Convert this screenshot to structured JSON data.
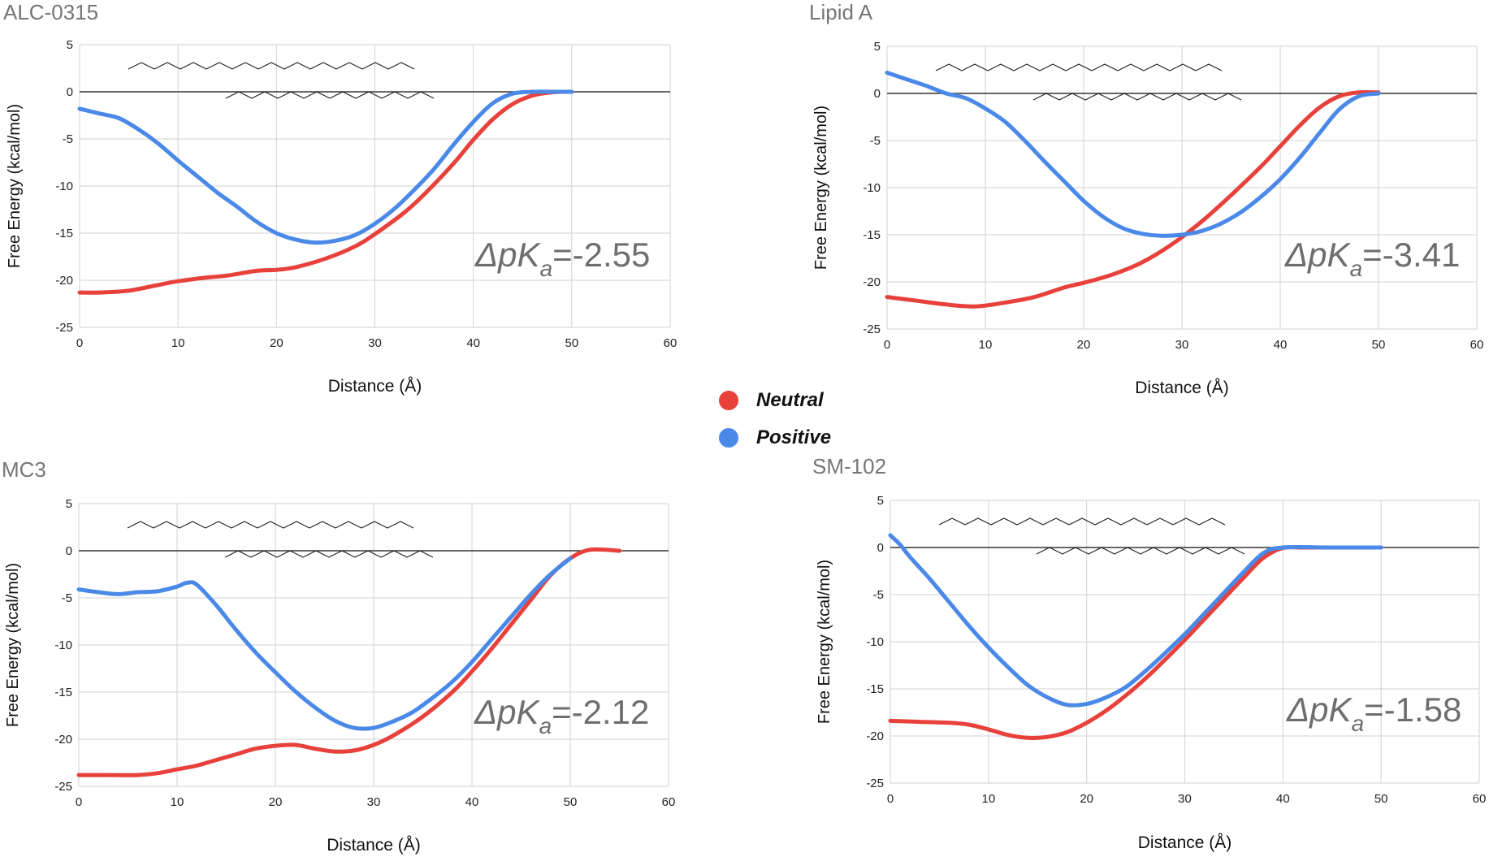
{
  "colors": {
    "neutral": "#e8403a",
    "positive": "#4a89e8",
    "grid": "#d2d2d2",
    "zero_line": "#333333",
    "label": "#767676",
    "tick": "#222222",
    "annotation": "#6e6e6e"
  },
  "legend": {
    "items": [
      {
        "label": "Neutral",
        "color": "#e8403a"
      },
      {
        "label": "Positive",
        "color": "#4a89e8"
      }
    ],
    "placement": "center"
  },
  "chart_data": [
    {
      "type": "line",
      "title": "ALC-0315",
      "xlabel": "Distance (Å)",
      "ylabel": "Free Energy (kcal/mol)",
      "xlim": [
        0,
        60
      ],
      "ylim": [
        -25,
        5
      ],
      "xticks": [
        "0",
        "10",
        "20",
        "30",
        "40",
        "50",
        "60"
      ],
      "yticks": [
        "5",
        "0",
        "-5",
        "-10",
        "-15",
        "-20",
        "-25"
      ],
      "annotation": {
        "prefix": "Δp",
        "letter": "K",
        "sub": "a",
        "suffix": "=-2.55"
      },
      "series": [
        {
          "name": "Neutral",
          "x": [
            0,
            2,
            5,
            8,
            10,
            13,
            15,
            18,
            20,
            22,
            25,
            28,
            30,
            33,
            35,
            38,
            40,
            42,
            44,
            46,
            48,
            50
          ],
          "y": [
            -21.3,
            -21.3,
            -21.1,
            -20.5,
            -20.1,
            -19.7,
            -19.5,
            -19.0,
            -18.9,
            -18.6,
            -17.7,
            -16.4,
            -15.1,
            -12.8,
            -10.9,
            -7.6,
            -5.1,
            -2.9,
            -1.3,
            -0.4,
            -0.05,
            0
          ]
        },
        {
          "name": "Positive",
          "x": [
            0,
            2,
            4,
            6,
            8,
            10,
            12,
            14,
            16,
            18,
            20,
            22,
            24,
            26,
            28,
            30,
            32,
            34,
            36,
            38,
            40,
            42,
            44,
            46,
            48,
            50
          ],
          "y": [
            -1.8,
            -2.3,
            -2.8,
            -4.0,
            -5.5,
            -7.3,
            -9.0,
            -10.7,
            -12.2,
            -13.8,
            -15.0,
            -15.7,
            -16.0,
            -15.8,
            -15.2,
            -14.0,
            -12.4,
            -10.4,
            -8.2,
            -5.6,
            -3.2,
            -1.2,
            -0.2,
            0,
            0,
            0
          ]
        }
      ]
    },
    {
      "type": "line",
      "title": "Lipid A",
      "xlabel": "Distance (Å)",
      "ylabel": "Free Energy (kcal/mol)",
      "xlim": [
        0,
        60
      ],
      "ylim": [
        -25,
        5
      ],
      "xticks": [
        "0",
        "10",
        "20",
        "30",
        "40",
        "50",
        "60"
      ],
      "yticks": [
        "5",
        "0",
        "-5",
        "-10",
        "-15",
        "-20",
        "-25"
      ],
      "annotation": {
        "prefix": "Δp",
        "letter": "K",
        "sub": "a",
        "suffix": "=-3.41"
      },
      "series": [
        {
          "name": "Neutral",
          "x": [
            0,
            3,
            6,
            9,
            12,
            15,
            18,
            20,
            23,
            26,
            29,
            32,
            35,
            38,
            40,
            42,
            44,
            46,
            48,
            50
          ],
          "y": [
            -21.6,
            -22.0,
            -22.4,
            -22.6,
            -22.2,
            -21.6,
            -20.6,
            -20.1,
            -19.2,
            -17.9,
            -16.0,
            -13.6,
            -10.8,
            -7.8,
            -5.6,
            -3.4,
            -1.5,
            -0.3,
            0.1,
            0.1
          ]
        },
        {
          "name": "Positive",
          "x": [
            0,
            2,
            4,
            6,
            8,
            10,
            12,
            14,
            16,
            18,
            20,
            22,
            24,
            26,
            28,
            30,
            32,
            34,
            36,
            38,
            40,
            42,
            44,
            46,
            48,
            50
          ],
          "y": [
            2.2,
            1.5,
            0.8,
            0.0,
            -0.5,
            -1.6,
            -3.0,
            -5.0,
            -7.2,
            -9.3,
            -11.4,
            -13.1,
            -14.3,
            -14.9,
            -15.1,
            -15.0,
            -14.6,
            -13.8,
            -12.6,
            -11.0,
            -9.1,
            -6.8,
            -4.2,
            -1.7,
            -0.3,
            0
          ]
        }
      ]
    },
    {
      "type": "line",
      "title": "MC3",
      "xlabel": "Distance (Å)",
      "ylabel": "Free Energy (kcal/mol)",
      "xlim": [
        0,
        60
      ],
      "ylim": [
        -25,
        5
      ],
      "xticks": [
        "0",
        "10",
        "20",
        "30",
        "40",
        "50",
        "60"
      ],
      "yticks": [
        "5",
        "0",
        "-5",
        "-10",
        "-15",
        "-20",
        "-25"
      ],
      "annotation": {
        "prefix": "Δp",
        "letter": "K",
        "sub": "a",
        "suffix": "=-2.12"
      },
      "series": [
        {
          "name": "Neutral",
          "x": [
            0,
            3,
            6,
            8,
            10,
            12,
            14,
            16,
            18,
            20,
            22,
            24,
            26,
            28,
            30,
            32,
            35,
            38,
            40,
            42,
            44,
            46,
            48,
            50,
            52,
            55
          ],
          "y": [
            -23.8,
            -23.8,
            -23.8,
            -23.6,
            -23.2,
            -22.8,
            -22.2,
            -21.6,
            -21.0,
            -20.7,
            -20.6,
            -21.0,
            -21.3,
            -21.2,
            -20.6,
            -19.6,
            -17.6,
            -15.0,
            -12.8,
            -10.4,
            -7.8,
            -5.2,
            -2.6,
            -0.8,
            0.1,
            0
          ]
        },
        {
          "name": "Positive",
          "x": [
            0,
            2,
            4,
            6,
            8,
            10,
            11,
            12,
            14,
            16,
            18,
            20,
            22,
            24,
            26,
            28,
            30,
            32,
            34,
            36,
            38,
            40,
            42,
            44,
            46,
            48,
            50
          ],
          "y": [
            -4.1,
            -4.4,
            -4.6,
            -4.4,
            -4.3,
            -3.8,
            -3.4,
            -3.6,
            -5.8,
            -8.4,
            -10.8,
            -12.9,
            -14.9,
            -16.6,
            -18.0,
            -18.8,
            -18.8,
            -18.1,
            -17.1,
            -15.6,
            -13.9,
            -11.8,
            -9.4,
            -7.0,
            -4.6,
            -2.5,
            -0.8
          ]
        }
      ]
    },
    {
      "type": "line",
      "title": "SM-102",
      "xlabel": "Distance (Å)",
      "ylabel": "Free Energy (kcal/mol)",
      "xlim": [
        0,
        60
      ],
      "ylim": [
        -25,
        5
      ],
      "xticks": [
        "0",
        "10",
        "20",
        "30",
        "40",
        "50",
        "60"
      ],
      "yticks": [
        "5",
        "0",
        "-5",
        "-10",
        "-15",
        "-20",
        "-25"
      ],
      "annotation": {
        "prefix": "Δp",
        "letter": "K",
        "sub": "a",
        "suffix": "=-1.58"
      },
      "series": [
        {
          "name": "Neutral",
          "x": [
            0,
            3,
            6,
            8,
            10,
            12,
            14,
            16,
            18,
            20,
            22,
            24,
            26,
            28,
            30,
            32,
            34,
            36,
            38,
            40,
            42,
            45,
            50
          ],
          "y": [
            -18.4,
            -18.5,
            -18.6,
            -18.8,
            -19.3,
            -19.9,
            -20.2,
            -20.1,
            -19.6,
            -18.6,
            -17.3,
            -15.7,
            -13.9,
            -11.9,
            -9.8,
            -7.6,
            -5.4,
            -3.2,
            -1.1,
            -0.05,
            0,
            0,
            0
          ]
        },
        {
          "name": "Positive",
          "x": [
            0,
            1,
            2,
            4,
            6,
            8,
            10,
            12,
            14,
            16,
            18,
            20,
            22,
            24,
            26,
            28,
            30,
            32,
            34,
            36,
            38,
            40,
            45,
            50
          ],
          "y": [
            1.3,
            0.3,
            -1.0,
            -3.3,
            -5.8,
            -8.3,
            -10.6,
            -12.7,
            -14.6,
            -15.9,
            -16.7,
            -16.6,
            -15.9,
            -14.8,
            -13.1,
            -11.2,
            -9.2,
            -7.0,
            -4.8,
            -2.6,
            -0.6,
            0,
            0,
            0
          ]
        }
      ]
    }
  ]
}
